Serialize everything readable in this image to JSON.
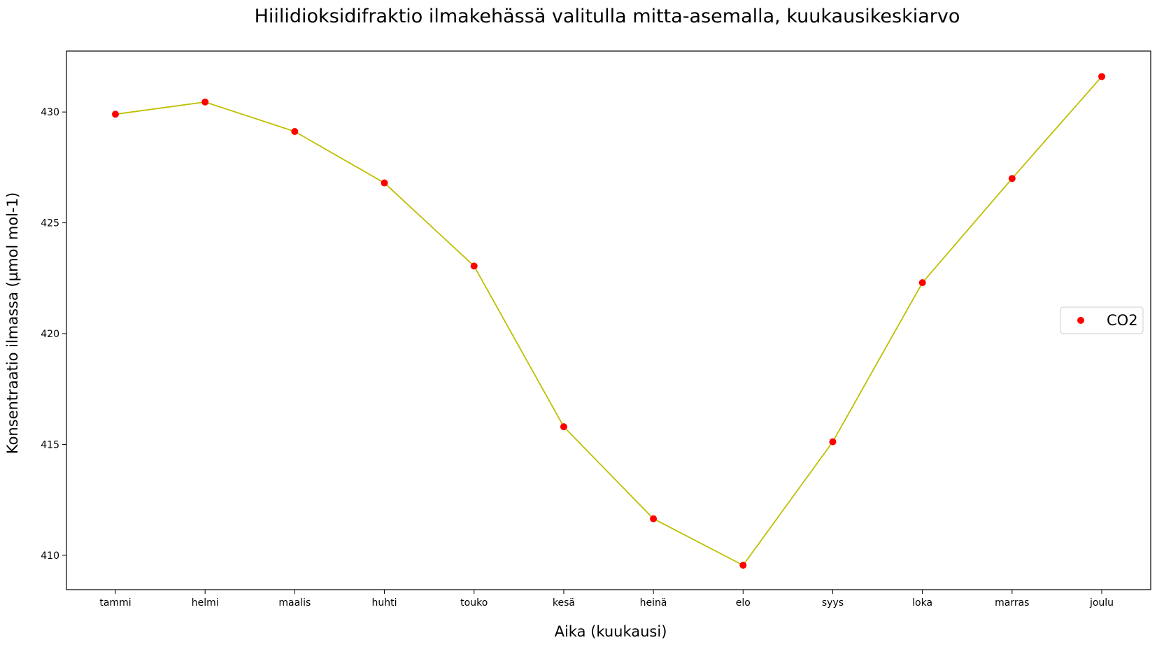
{
  "chart_data": {
    "type": "line",
    "title": "Hiilidioksidifraktio ilmakehässä valitulla mitta-asemalla, kuukausikeskiarvo",
    "xlabel": "Aika (kuukausi)",
    "ylabel": "Konsentraatio ilmassa (µmol mol-1)",
    "categories": [
      "tammi",
      "helmi",
      "maalis",
      "huhti",
      "touko",
      "kesä",
      "heinä",
      "elo",
      "syys",
      "loka",
      "marras",
      "joulu"
    ],
    "series": [
      {
        "name": "CO2",
        "values": [
          429.9,
          430.45,
          429.12,
          426.8,
          423.05,
          415.8,
          411.65,
          409.55,
          415.12,
          422.3,
          427.0,
          431.6
        ]
      }
    ],
    "ylim": [
      408.45,
      432.75
    ],
    "yticks": [
      410,
      415,
      420,
      425,
      430
    ],
    "grid": false,
    "legend_position": "center-right",
    "colors": {
      "line": "#bfbf00",
      "marker": "#ff0000"
    }
  }
}
